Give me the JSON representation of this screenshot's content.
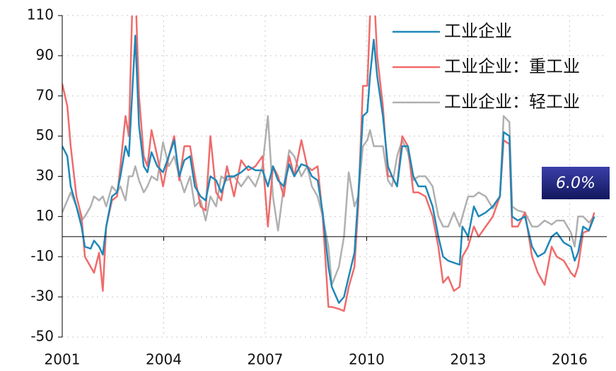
{
  "chart_data": {
    "type": "line",
    "annotation": "6.0%",
    "x": [
      2001.0,
      2001.15,
      2001.25,
      2001.42,
      2001.57,
      2001.67,
      2001.84,
      2001.94,
      2002.09,
      2002.2,
      2002.3,
      2002.47,
      2002.62,
      2002.72,
      2002.87,
      2002.97,
      2003.08,
      2003.16,
      2003.27,
      2003.41,
      2003.52,
      2003.64,
      2003.81,
      2003.98,
      2004.15,
      2004.31,
      2004.46,
      2004.61,
      2004.78,
      2004.92,
      2005.09,
      2005.24,
      2005.38,
      2005.55,
      2005.7,
      2005.87,
      2006.08,
      2006.29,
      2006.5,
      2006.71,
      2006.92,
      2007.08,
      2007.23,
      2007.38,
      2007.55,
      2007.71,
      2007.86,
      2008.07,
      2008.24,
      2008.38,
      2008.55,
      2008.7,
      2008.87,
      2008.97,
      2009.18,
      2009.33,
      2009.47,
      2009.64,
      2009.75,
      2009.89,
      2010.02,
      2010.1,
      2010.21,
      2010.31,
      2010.48,
      2010.63,
      2010.75,
      2010.9,
      2011.05,
      2011.22,
      2011.38,
      2011.53,
      2011.74,
      2011.95,
      2012.12,
      2012.26,
      2012.41,
      2012.58,
      2012.75,
      2012.83,
      2013.0,
      2013.17,
      2013.31,
      2013.52,
      2013.73,
      2013.94,
      2014.05,
      2014.22,
      2014.3,
      2014.47,
      2014.68,
      2014.89,
      2015.06,
      2015.26,
      2015.47,
      2015.62,
      2015.83,
      2016.04,
      2016.15,
      2016.25,
      2016.4,
      2016.57,
      2016.73
    ],
    "series": [
      {
        "name": "工业企业",
        "color": "#1f88b8",
        "values": [
          45,
          40,
          25,
          15,
          5,
          -5,
          -6,
          -2,
          -5,
          -9,
          5,
          20,
          22,
          30,
          45,
          40,
          75,
          100,
          55,
          35,
          32,
          42,
          35,
          32,
          40,
          48,
          30,
          38,
          40,
          25,
          20,
          18,
          30,
          28,
          22,
          30,
          30,
          32,
          35,
          33,
          33,
          25,
          35,
          28,
          25,
          36,
          30,
          36,
          35,
          30,
          28,
          12,
          -15,
          -25,
          -33,
          -30,
          -20,
          -8,
          20,
          60,
          62,
          80,
          98,
          80,
          60,
          35,
          30,
          25,
          45,
          45,
          30,
          25,
          25,
          15,
          0,
          -10,
          -12,
          -13,
          -14,
          5,
          0,
          15,
          10,
          12,
          15,
          20,
          52,
          50,
          10,
          8,
          10,
          -5,
          -10,
          -8,
          0,
          2,
          -3,
          -5,
          -12,
          -8,
          5,
          3,
          10
        ]
      },
      {
        "name": "工业企业：重工业",
        "color": "#f06b6b",
        "values": [
          76,
          65,
          45,
          20,
          10,
          -10,
          -15,
          -18,
          -8,
          -27,
          5,
          18,
          20,
          35,
          60,
          50,
          120,
          125,
          70,
          40,
          35,
          53,
          40,
          25,
          40,
          50,
          28,
          45,
          45,
          30,
          15,
          13,
          50,
          22,
          18,
          35,
          20,
          38,
          33,
          35,
          40,
          5,
          35,
          30,
          20,
          40,
          30,
          48,
          35,
          33,
          35,
          10,
          -35,
          -35,
          -36,
          -37,
          -25,
          -15,
          15,
          75,
          75,
          110,
          125,
          90,
          65,
          30,
          30,
          25,
          50,
          45,
          22,
          22,
          20,
          10,
          -5,
          -23,
          -20,
          -27,
          -25,
          -10,
          -5,
          5,
          0,
          5,
          10,
          20,
          48,
          46,
          5,
          5,
          12,
          -10,
          -18,
          -24,
          -5,
          -10,
          -12,
          -18,
          -20,
          -15,
          2,
          3,
          12
        ]
      },
      {
        "name": "工业企业：轻工业",
        "color": "#b0b0b0",
        "values": [
          12,
          18,
          22,
          15,
          8,
          10,
          15,
          20,
          18,
          20,
          15,
          25,
          22,
          25,
          18,
          30,
          30,
          35,
          28,
          22,
          25,
          30,
          28,
          47,
          35,
          40,
          30,
          22,
          30,
          15,
          18,
          8,
          20,
          15,
          30,
          28,
          30,
          25,
          30,
          25,
          35,
          60,
          20,
          3,
          25,
          43,
          40,
          30,
          35,
          25,
          20,
          10,
          -5,
          -24,
          -15,
          0,
          32,
          15,
          20,
          45,
          48,
          53,
          45,
          45,
          45,
          28,
          25,
          40,
          48,
          42,
          28,
          30,
          30,
          25,
          10,
          5,
          5,
          12,
          5,
          10,
          20,
          20,
          22,
          20,
          14,
          20,
          60,
          57,
          15,
          13,
          12,
          5,
          5,
          8,
          6,
          8,
          8,
          2,
          -5,
          10,
          10,
          7,
          10
        ]
      }
    ],
    "xlim": [
      2001,
      2017.1
    ],
    "xticks": [
      2001,
      2004,
      2007,
      2010,
      2013,
      2016
    ],
    "ylim": [
      -50,
      110
    ],
    "yticks": [
      -50,
      -30,
      -10,
      10,
      30,
      50,
      70,
      90,
      110
    ],
    "grid": true,
    "legend": "upper right"
  }
}
